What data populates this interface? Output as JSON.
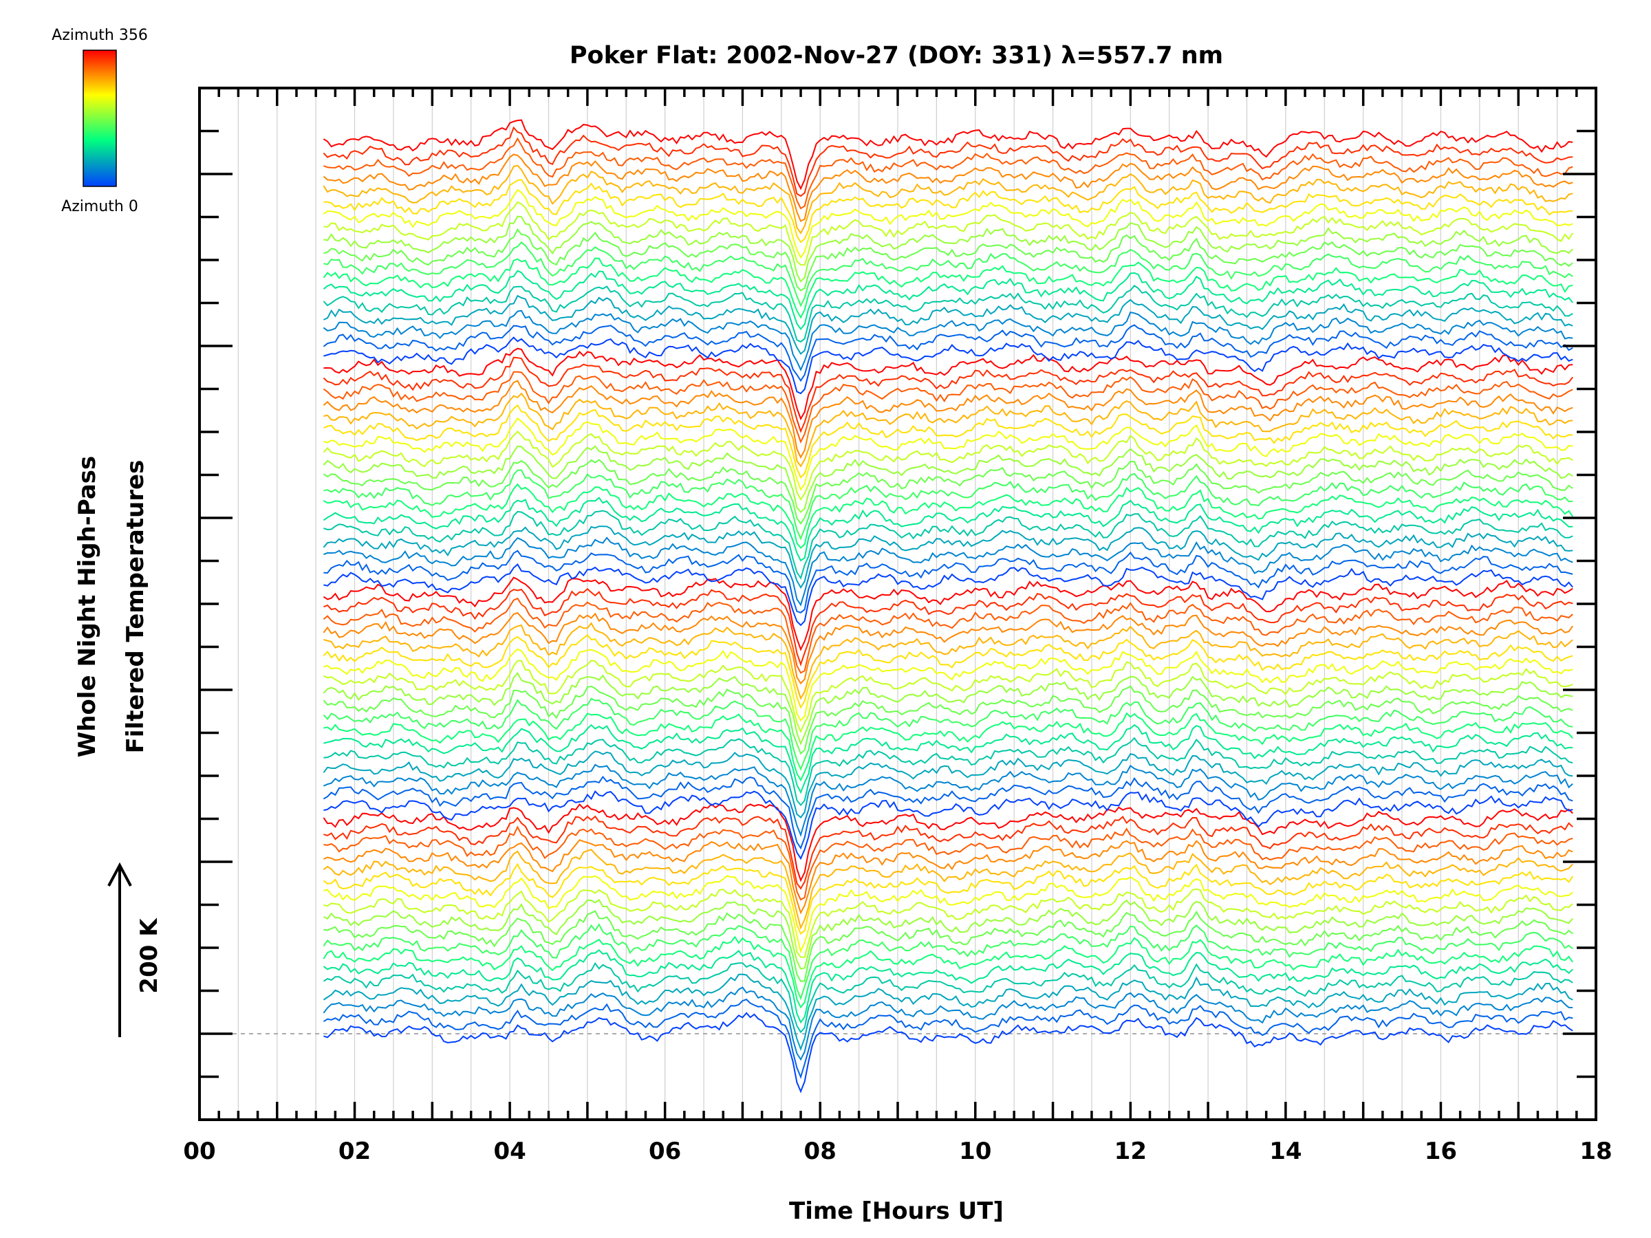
{
  "chart_data": {
    "type": "line",
    "title": "Poker Flat: 2002-Nov-27 (DOY: 331) λ=557.7 nm",
    "xlabel": "Time [Hours UT]",
    "ylabel_line1": "Whole Night High-Pass",
    "ylabel_line2": "Filtered Temperatures",
    "scale_label": "200 K",
    "xlim": [
      0,
      18
    ],
    "x_tick_labels": [
      "00",
      "02",
      "04",
      "06",
      "08",
      "10",
      "12",
      "14",
      "16",
      "18"
    ],
    "x_range_data": [
      1.6,
      17.7
    ],
    "colorbar": {
      "top_label": "Azimuth 356",
      "bottom_label": "Azimuth 0",
      "colors": [
        "#ff0000",
        "#ffff00",
        "#00ff80",
        "#0040ff"
      ]
    },
    "series_info": {
      "stacked_traces": 72,
      "azimuth_groups": 4,
      "traces_per_group": 18,
      "azimuth_min": 0,
      "azimuth_max": 356
    },
    "features": {
      "dip_time_hours": 7.75,
      "peaks_hours": [
        4.1,
        5.1,
        7.1,
        12.0,
        12.85
      ]
    },
    "grid": true
  }
}
